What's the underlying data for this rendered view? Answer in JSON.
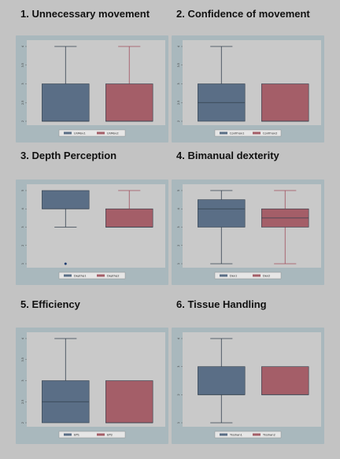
{
  "colors": {
    "page_bg": "#c3c3c3",
    "panel_bg": "#a9b8bd",
    "plot_bg": "#c9c9c9",
    "series1_fill": "#5a6e86",
    "series2_fill": "#a45e68",
    "series2_whisker": "#a04e5c",
    "box_outline": "#33404e"
  },
  "chart_data": [
    {
      "title": "1. Unnecessary movement",
      "type": "box",
      "ylim": [
        2,
        4
      ],
      "yticks": [
        "2",
        "2.5",
        "3",
        "3.5",
        "4"
      ],
      "series": [
        {
          "name": "UnMov1",
          "min": 2,
          "q1": 2,
          "median": 2,
          "q3": 3,
          "max": 4
        },
        {
          "name": "UnMov2",
          "min": 2,
          "q1": 2,
          "median": 2,
          "q3": 3,
          "max": 4
        }
      ]
    },
    {
      "title": "2. Confidence of movement",
      "type": "box",
      "ylim": [
        2,
        4
      ],
      "yticks": [
        "2",
        "2.5",
        "3",
        "3.5",
        "4"
      ],
      "series": [
        {
          "name": "Confmov1",
          "min": 2,
          "q1": 2,
          "median": 2.5,
          "q3": 3,
          "max": 4
        },
        {
          "name": "Confmov2",
          "min": 2,
          "q1": 2,
          "median": 2,
          "q3": 3,
          "max": 3
        }
      ]
    },
    {
      "title": "3. Depth Perception",
      "type": "box",
      "ylim": [
        1,
        5
      ],
      "yticks": [
        "1",
        "2",
        "3",
        "4",
        "5"
      ],
      "series": [
        {
          "name": "Depthp1",
          "min": 3,
          "q1": 4,
          "median": 4,
          "q3": 5,
          "max": 5,
          "outliers": [
            1
          ]
        },
        {
          "name": "Depthp2",
          "min": 3,
          "q1": 3,
          "median": 3,
          "q3": 4,
          "max": 5
        }
      ]
    },
    {
      "title": "4. Bimanual dexterity",
      "type": "box",
      "ylim": [
        1,
        5
      ],
      "yticks": [
        "1",
        "2",
        "3",
        "4",
        "5"
      ],
      "series": [
        {
          "name": "Dex1",
          "min": 1,
          "q1": 3,
          "median": 4,
          "q3": 4.5,
          "max": 5
        },
        {
          "name": "Dex2",
          "min": 1,
          "q1": 3,
          "median": 3.5,
          "q3": 4,
          "max": 5
        }
      ]
    },
    {
      "title": "5. Efficiency",
      "type": "box",
      "ylim": [
        2,
        4
      ],
      "yticks": [
        "2",
        "2.5",
        "3",
        "3.5",
        "4"
      ],
      "series": [
        {
          "name": "Eff1",
          "min": 2,
          "q1": 2,
          "median": 2.5,
          "q3": 3,
          "max": 4
        },
        {
          "name": "Eff2",
          "min": 2,
          "q1": 2,
          "median": 2,
          "q3": 3,
          "max": 3
        }
      ]
    },
    {
      "title": "6. Tissue Handling",
      "type": "box",
      "ylim": [
        1,
        4
      ],
      "yticks": [
        "1",
        "2",
        "3",
        "4"
      ],
      "series": [
        {
          "name": "Tisshan1",
          "min": 1,
          "q1": 2,
          "median": 2,
          "q3": 3,
          "max": 4
        },
        {
          "name": "Tisshan2",
          "min": 2,
          "q1": 2,
          "median": 2,
          "q3": 3,
          "max": 3
        }
      ]
    }
  ]
}
